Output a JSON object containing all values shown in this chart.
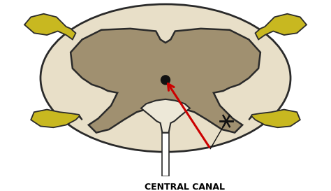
{
  "bg_color": "#ffffff",
  "outer_color": "#e8dfc8",
  "outer_edge": "#2a2a2a",
  "gray_color": "#a09070",
  "gray_edge": "#2a2a2a",
  "nerve_color": "#c8b820",
  "nerve_edge": "#2a2a2a",
  "canal_fill": "#ede8d8",
  "canal_edge": "#2a2a2a",
  "arrow_color": "#cc0000",
  "label_text": "CENTRAL CANAL",
  "label_fontsize": 9,
  "label_fontweight": "bold",
  "dot_color": "#111111",
  "star_color": "#111111"
}
